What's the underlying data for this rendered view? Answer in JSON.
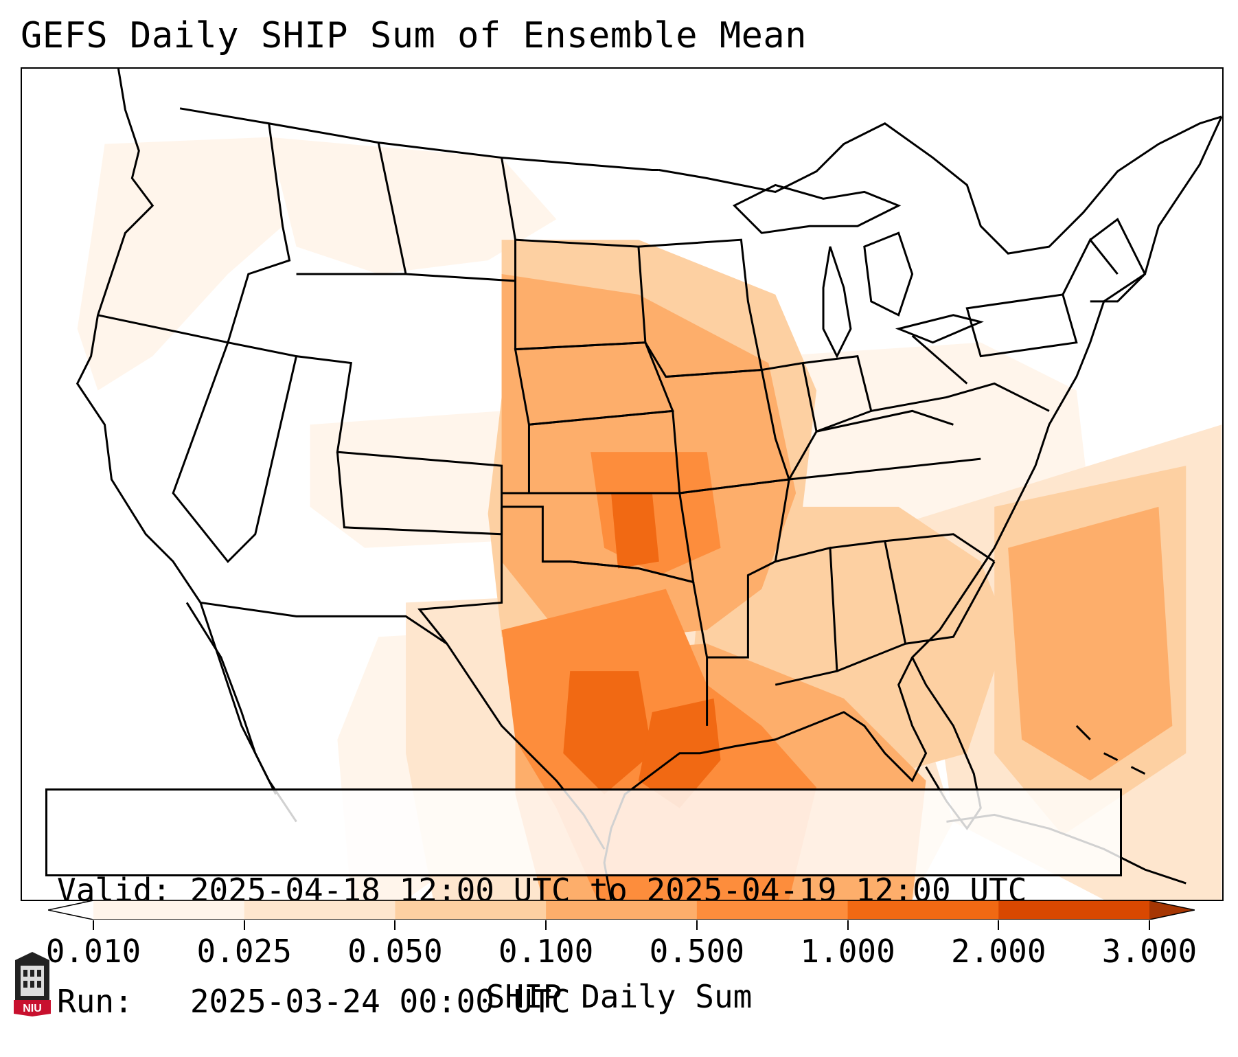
{
  "title": "GEFS Daily SHIP Sum of Ensemble Mean",
  "info": {
    "valid": "Valid: 2025-04-18 12:00 UTC to 2025-04-19 12:00 UTC",
    "run": "Run:   2025-03-24 00:00 UTC"
  },
  "colorbar": {
    "label": "SHIP Daily Sum",
    "ticks": [
      "0.010",
      "0.025",
      "0.050",
      "0.100",
      "0.500",
      "1.000",
      "2.000",
      "3.000"
    ],
    "colors": [
      "#fff5eb",
      "#fee6ce",
      "#fdd0a2",
      "#fdae6b",
      "#fd8d3c",
      "#f16913",
      "#d94801",
      "#a63603"
    ]
  },
  "logo": {
    "text": "NIU"
  }
}
